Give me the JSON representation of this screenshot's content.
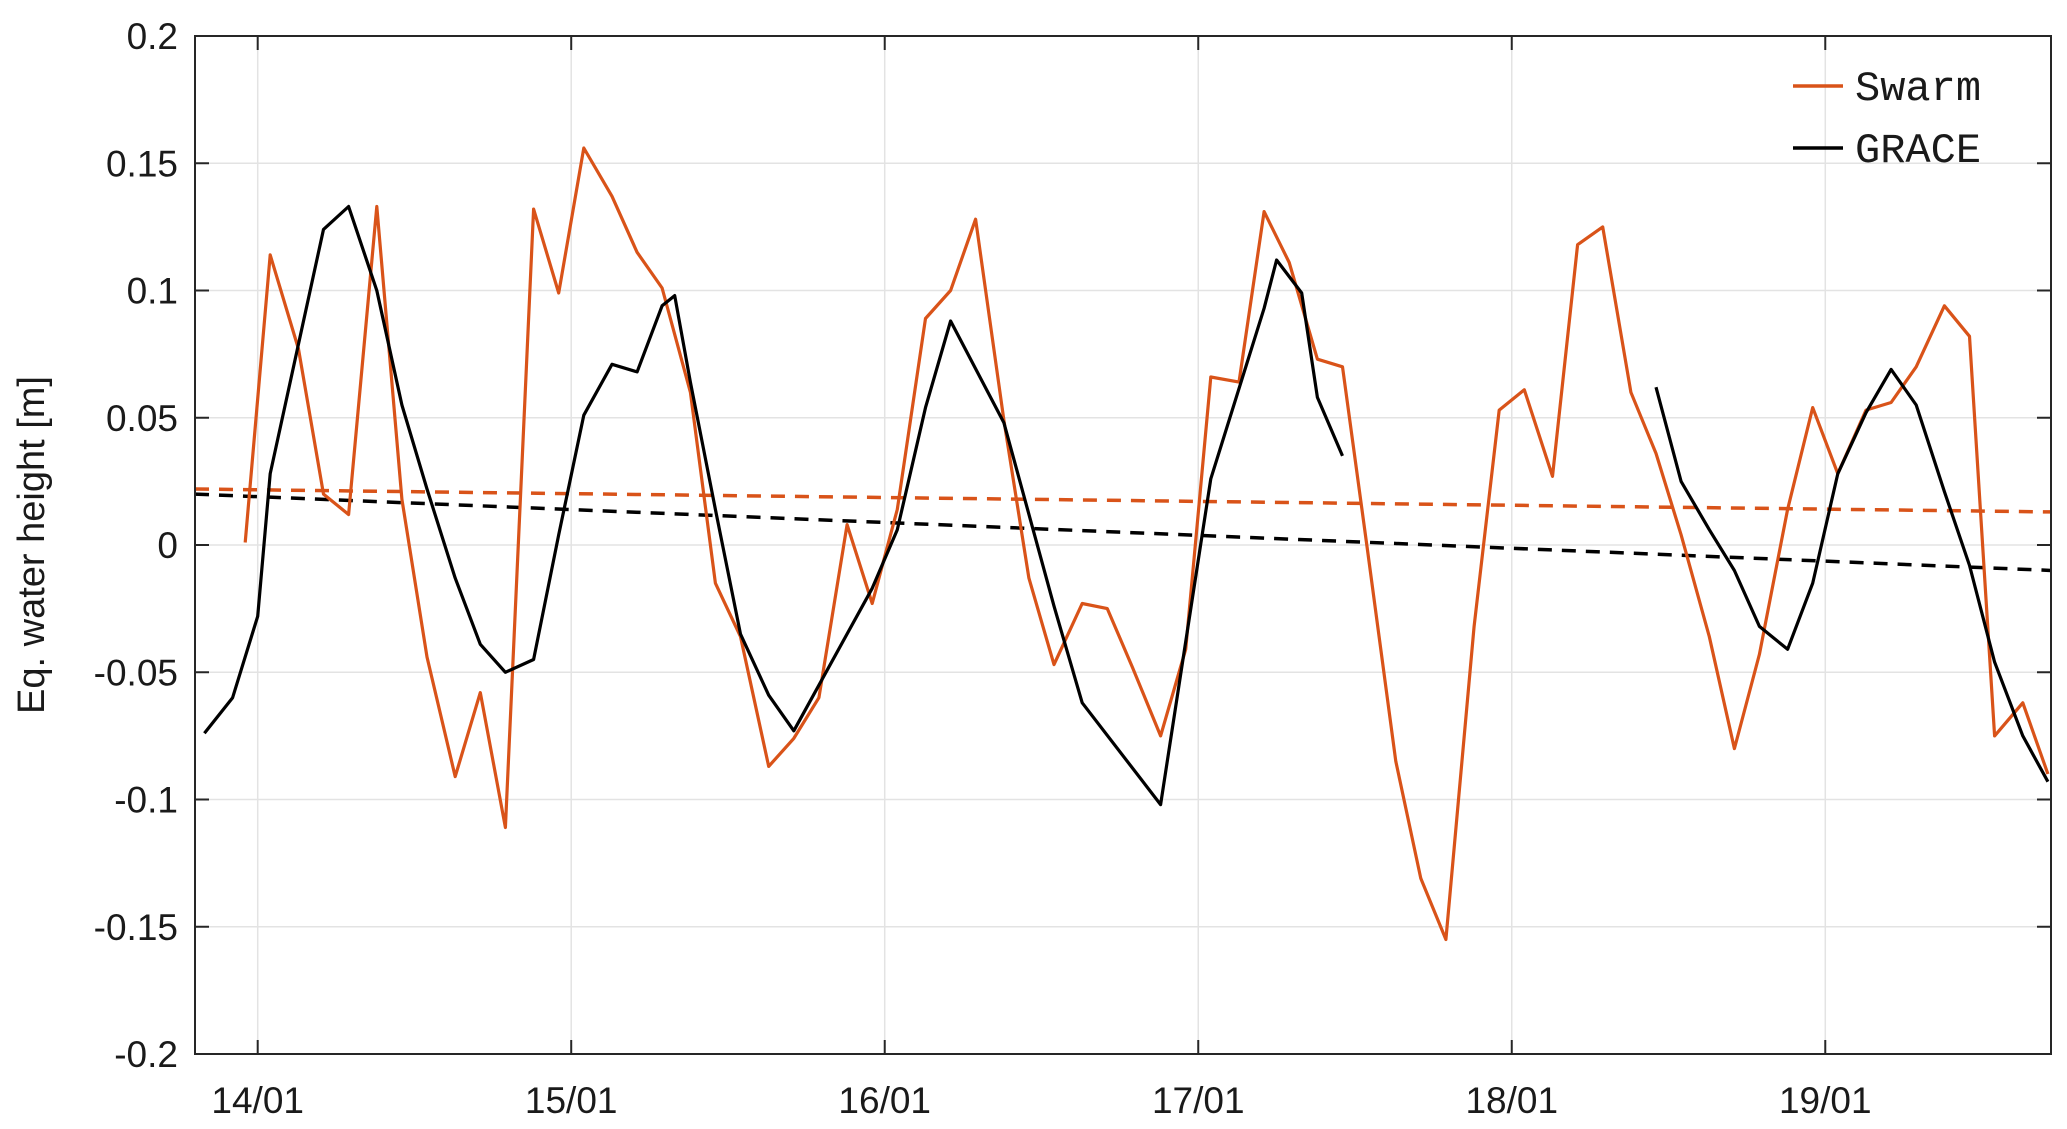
{
  "chart_data": {
    "type": "line",
    "title": "",
    "xlabel": "",
    "ylabel": "Eq. water height [m]",
    "x_unit": "years since 2014-01 (labels show YY/MM)",
    "xlim": [
      2013.8,
      2019.72
    ],
    "ylim": [
      -0.2,
      0.2
    ],
    "x_ticks": [
      {
        "value": 2014.0,
        "label": "14/01"
      },
      {
        "value": 2015.0,
        "label": "15/01"
      },
      {
        "value": 2016.0,
        "label": "16/01"
      },
      {
        "value": 2017.0,
        "label": "17/01"
      },
      {
        "value": 2018.0,
        "label": "18/01"
      },
      {
        "value": 2019.0,
        "label": "19/01"
      }
    ],
    "y_ticks": [
      {
        "value": 0.2,
        "label": "0.2"
      },
      {
        "value": 0.15,
        "label": "0.15"
      },
      {
        "value": 0.1,
        "label": "0.1"
      },
      {
        "value": 0.05,
        "label": "0.05"
      },
      {
        "value": 0,
        "label": "0"
      },
      {
        "value": -0.05,
        "label": "-0.05"
      },
      {
        "value": -0.1,
        "label": "-0.1"
      },
      {
        "value": -0.15,
        "label": "-0.15"
      },
      {
        "value": -0.2,
        "label": "-0.2"
      }
    ],
    "grid": true,
    "legend": {
      "placement": "top-right",
      "entries": [
        "Swarm",
        "GRACE"
      ]
    },
    "series": [
      {
        "name": "Swarm",
        "color": "#d95319",
        "style": "solid",
        "segments": [
          [
            [
              2013.96,
              0.001
            ],
            [
              2014.04,
              0.114
            ],
            [
              2014.13,
              0.077
            ],
            [
              2014.21,
              0.02
            ],
            [
              2014.29,
              0.012
            ],
            [
              2014.38,
              0.133
            ],
            [
              2014.46,
              0.018
            ],
            [
              2014.54,
              -0.044
            ],
            [
              2014.63,
              -0.091
            ],
            [
              2014.71,
              -0.058
            ],
            [
              2014.79,
              -0.111
            ],
            [
              2014.88,
              0.132
            ],
            [
              2014.96,
              0.099
            ],
            [
              2015.04,
              0.156
            ],
            [
              2015.13,
              0.137
            ],
            [
              2015.21,
              0.115
            ],
            [
              2015.29,
              0.101
            ],
            [
              2015.38,
              0.06
            ],
            [
              2015.46,
              -0.015
            ],
            [
              2015.54,
              -0.036
            ],
            [
              2015.63,
              -0.087
            ],
            [
              2015.71,
              -0.076
            ],
            [
              2015.79,
              -0.06
            ],
            [
              2015.88,
              0.008
            ],
            [
              2015.96,
              -0.023
            ],
            [
              2016.04,
              0.014
            ],
            [
              2016.13,
              0.089
            ],
            [
              2016.21,
              0.1
            ],
            [
              2016.29,
              0.128
            ],
            [
              2016.38,
              0.049
            ],
            [
              2016.46,
              -0.013
            ],
            [
              2016.54,
              -0.047
            ],
            [
              2016.63,
              -0.023
            ],
            [
              2016.71,
              -0.025
            ],
            [
              2016.79,
              -0.048
            ],
            [
              2016.88,
              -0.075
            ],
            [
              2016.96,
              -0.041
            ],
            [
              2017.04,
              0.066
            ],
            [
              2017.13,
              0.064
            ],
            [
              2017.21,
              0.131
            ],
            [
              2017.29,
              0.111
            ],
            [
              2017.38,
              0.073
            ],
            [
              2017.46,
              0.07
            ],
            [
              2017.54,
              -0.002
            ],
            [
              2017.63,
              -0.085
            ],
            [
              2017.71,
              -0.131
            ],
            [
              2017.79,
              -0.155
            ],
            [
              2017.88,
              -0.032
            ],
            [
              2017.96,
              0.053
            ],
            [
              2018.04,
              0.061
            ],
            [
              2018.13,
              0.027
            ],
            [
              2018.21,
              0.118
            ],
            [
              2018.29,
              0.125
            ],
            [
              2018.38,
              0.06
            ],
            [
              2018.46,
              0.036
            ],
            [
              2018.54,
              0.004
            ],
            [
              2018.63,
              -0.036
            ],
            [
              2018.71,
              -0.08
            ],
            [
              2018.79,
              -0.043
            ],
            [
              2018.88,
              0.014
            ],
            [
              2018.96,
              0.054
            ],
            [
              2019.04,
              0.028
            ],
            [
              2019.13,
              0.053
            ],
            [
              2019.21,
              0.056
            ],
            [
              2019.29,
              0.07
            ],
            [
              2019.38,
              0.094
            ],
            [
              2019.46,
              0.082
            ],
            [
              2019.54,
              -0.075
            ],
            [
              2019.63,
              -0.062
            ],
            [
              2019.71,
              -0.09
            ]
          ]
        ]
      },
      {
        "name": "GRACE",
        "color": "#000000",
        "style": "solid",
        "segments": [
          [
            [
              2013.83,
              -0.074
            ],
            [
              2013.92,
              -0.06
            ],
            [
              2014.0,
              -0.028
            ],
            [
              2014.04,
              0.028
            ],
            [
              2014.21,
              0.124
            ],
            [
              2014.29,
              0.133
            ],
            [
              2014.38,
              0.1
            ],
            [
              2014.46,
              0.055
            ],
            [
              2014.54,
              0.022
            ],
            [
              2014.63,
              -0.013
            ],
            [
              2014.71,
              -0.039
            ],
            [
              2014.79,
              -0.05
            ],
            [
              2014.88,
              -0.045
            ],
            [
              2014.96,
              0.004
            ],
            [
              2015.04,
              0.051
            ],
            [
              2015.13,
              0.071
            ],
            [
              2015.21,
              0.068
            ],
            [
              2015.29,
              0.094
            ],
            [
              2015.33,
              0.098
            ],
            [
              2015.38,
              0.064
            ],
            [
              2015.46,
              0.014
            ],
            [
              2015.54,
              -0.035
            ],
            [
              2015.63,
              -0.059
            ],
            [
              2015.71,
              -0.073
            ],
            [
              2015.96,
              -0.017
            ],
            [
              2016.04,
              0.006
            ],
            [
              2016.13,
              0.054
            ],
            [
              2016.21,
              0.088
            ],
            [
              2016.38,
              0.048
            ],
            [
              2016.54,
              -0.024
            ],
            [
              2016.63,
              -0.062
            ],
            [
              2016.88,
              -0.102
            ],
            [
              2017.04,
              0.026
            ],
            [
              2017.21,
              0.093
            ],
            [
              2017.25,
              0.112
            ],
            [
              2017.33,
              0.099
            ],
            [
              2017.38,
              0.058
            ],
            [
              2017.46,
              0.035
            ]
          ],
          [
            [
              2018.46,
              0.062
            ],
            [
              2018.54,
              0.025
            ],
            [
              2018.63,
              0.006
            ],
            [
              2018.71,
              -0.01
            ],
            [
              2018.79,
              -0.032
            ],
            [
              2018.88,
              -0.041
            ],
            [
              2018.96,
              -0.015
            ],
            [
              2019.04,
              0.028
            ],
            [
              2019.13,
              0.052
            ],
            [
              2019.21,
              0.069
            ],
            [
              2019.29,
              0.055
            ],
            [
              2019.38,
              0.021
            ],
            [
              2019.46,
              -0.008
            ],
            [
              2019.54,
              -0.046
            ],
            [
              2019.63,
              -0.075
            ],
            [
              2019.71,
              -0.093
            ]
          ]
        ]
      }
    ],
    "trend_lines": [
      {
        "series": "Swarm",
        "color": "#d95319",
        "style": "dashed",
        "points": [
          [
            2013.8,
            0.022
          ],
          [
            2019.72,
            0.013
          ]
        ]
      },
      {
        "series": "GRACE",
        "color": "#000000",
        "style": "dashed",
        "points": [
          [
            2013.8,
            0.02
          ],
          [
            2019.72,
            -0.01
          ]
        ]
      }
    ]
  }
}
